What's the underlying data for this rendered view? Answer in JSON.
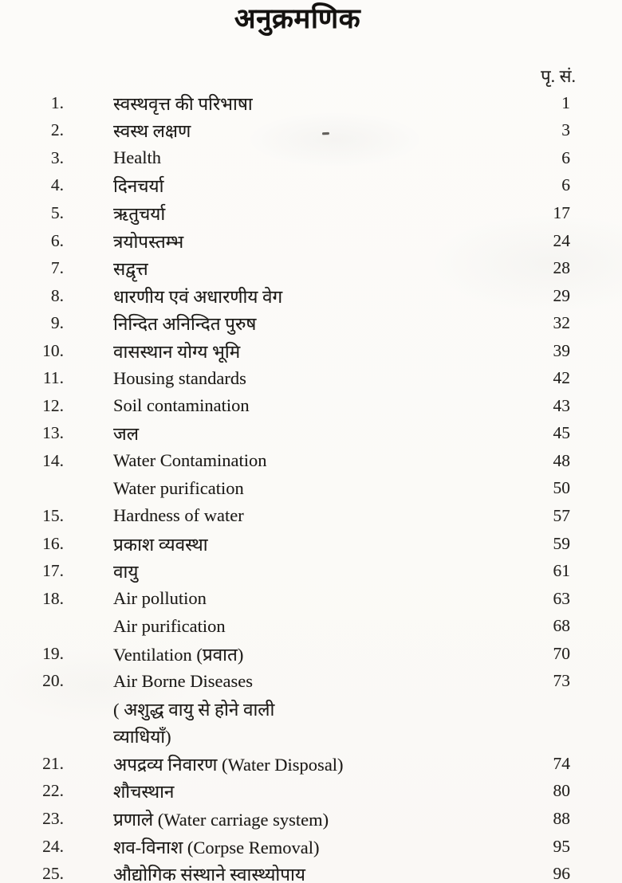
{
  "page": {
    "title": "अनुक्रमणिक",
    "column_header": "पृ. सं."
  },
  "colors": {
    "paper": "#fcfbf9",
    "ink": "#201e1c"
  },
  "toc": {
    "entries": [
      {
        "no": "1.",
        "lines": [
          {
            "text": "स्वस्थवृत्त की परिभाषा",
            "page": "1"
          }
        ]
      },
      {
        "no": "2.",
        "lines": [
          {
            "text": "स्वस्थ लक्षण",
            "page": "3"
          }
        ]
      },
      {
        "no": "3.",
        "lines": [
          {
            "text": "Health",
            "page": "6"
          }
        ]
      },
      {
        "no": "4.",
        "lines": [
          {
            "text": "दिनचर्या",
            "page": "6"
          }
        ]
      },
      {
        "no": "5.",
        "lines": [
          {
            "text": "ऋतुचर्या",
            "page": "17"
          }
        ]
      },
      {
        "no": "6.",
        "lines": [
          {
            "text": "त्रयोपस्तम्भ",
            "page": "24"
          }
        ]
      },
      {
        "no": "7.",
        "lines": [
          {
            "text": "सद्वृत्त",
            "page": "28"
          }
        ]
      },
      {
        "no": "8.",
        "lines": [
          {
            "text": "धारणीय एवं अधारणीय वेग",
            "page": "29"
          }
        ]
      },
      {
        "no": "9.",
        "lines": [
          {
            "text": "निन्दित अनिन्दित पुरुष",
            "page": "32"
          }
        ]
      },
      {
        "no": "10.",
        "lines": [
          {
            "text": "वासस्थान योग्य भूमि",
            "page": "39"
          }
        ]
      },
      {
        "no": "11.",
        "lines": [
          {
            "text": "Housing standards",
            "page": "42"
          }
        ]
      },
      {
        "no": "12.",
        "lines": [
          {
            "text": "Soil contamination",
            "page": "43"
          }
        ]
      },
      {
        "no": "13.",
        "lines": [
          {
            "text": "जल",
            "page": "45"
          }
        ]
      },
      {
        "no": "14.",
        "lines": [
          {
            "text": "Water Contamination",
            "page": "48"
          },
          {
            "text": "Water purification",
            "page": "50"
          }
        ]
      },
      {
        "no": "15.",
        "lines": [
          {
            "text": "Hardness of water",
            "page": "57"
          }
        ]
      },
      {
        "no": "16.",
        "lines": [
          {
            "text": "प्रकाश व्यवस्था",
            "page": "59"
          }
        ]
      },
      {
        "no": "17.",
        "lines": [
          {
            "text": "वायु",
            "page": "61"
          }
        ]
      },
      {
        "no": "18.",
        "lines": [
          {
            "text": "Air pollution",
            "page": "63"
          },
          {
            "text": "Air purification",
            "page": "68"
          }
        ]
      },
      {
        "no": "19.",
        "lines": [
          {
            "text": "Ventilation (प्रवात)",
            "page": "70"
          }
        ]
      },
      {
        "no": "20.",
        "lines": [
          {
            "text": "Air Borne Diseases",
            "page": "73"
          },
          {
            "text": "( अशुद्ध वायु से होने वाली",
            "page": ""
          },
          {
            "text": "व्याधियाँ)",
            "page": ""
          }
        ]
      },
      {
        "no": "21.",
        "lines": [
          {
            "text": "अपद्रव्य निवारण (Water Disposal)",
            "page": "74"
          }
        ]
      },
      {
        "no": "22.",
        "lines": [
          {
            "text": "शौचस्थान",
            "page": "80"
          }
        ]
      },
      {
        "no": "23.",
        "lines": [
          {
            "text": "प्रणाले (Water carriage system)",
            "page": "88"
          }
        ]
      },
      {
        "no": "24.",
        "lines": [
          {
            "text": "शव-विनाश (Corpse Removal)",
            "page": "95"
          }
        ]
      },
      {
        "no": "25.",
        "lines": [
          {
            "text": "औद्योगिक संस्थाने स्वास्थ्योपाय",
            "page": "96"
          }
        ]
      }
    ]
  }
}
